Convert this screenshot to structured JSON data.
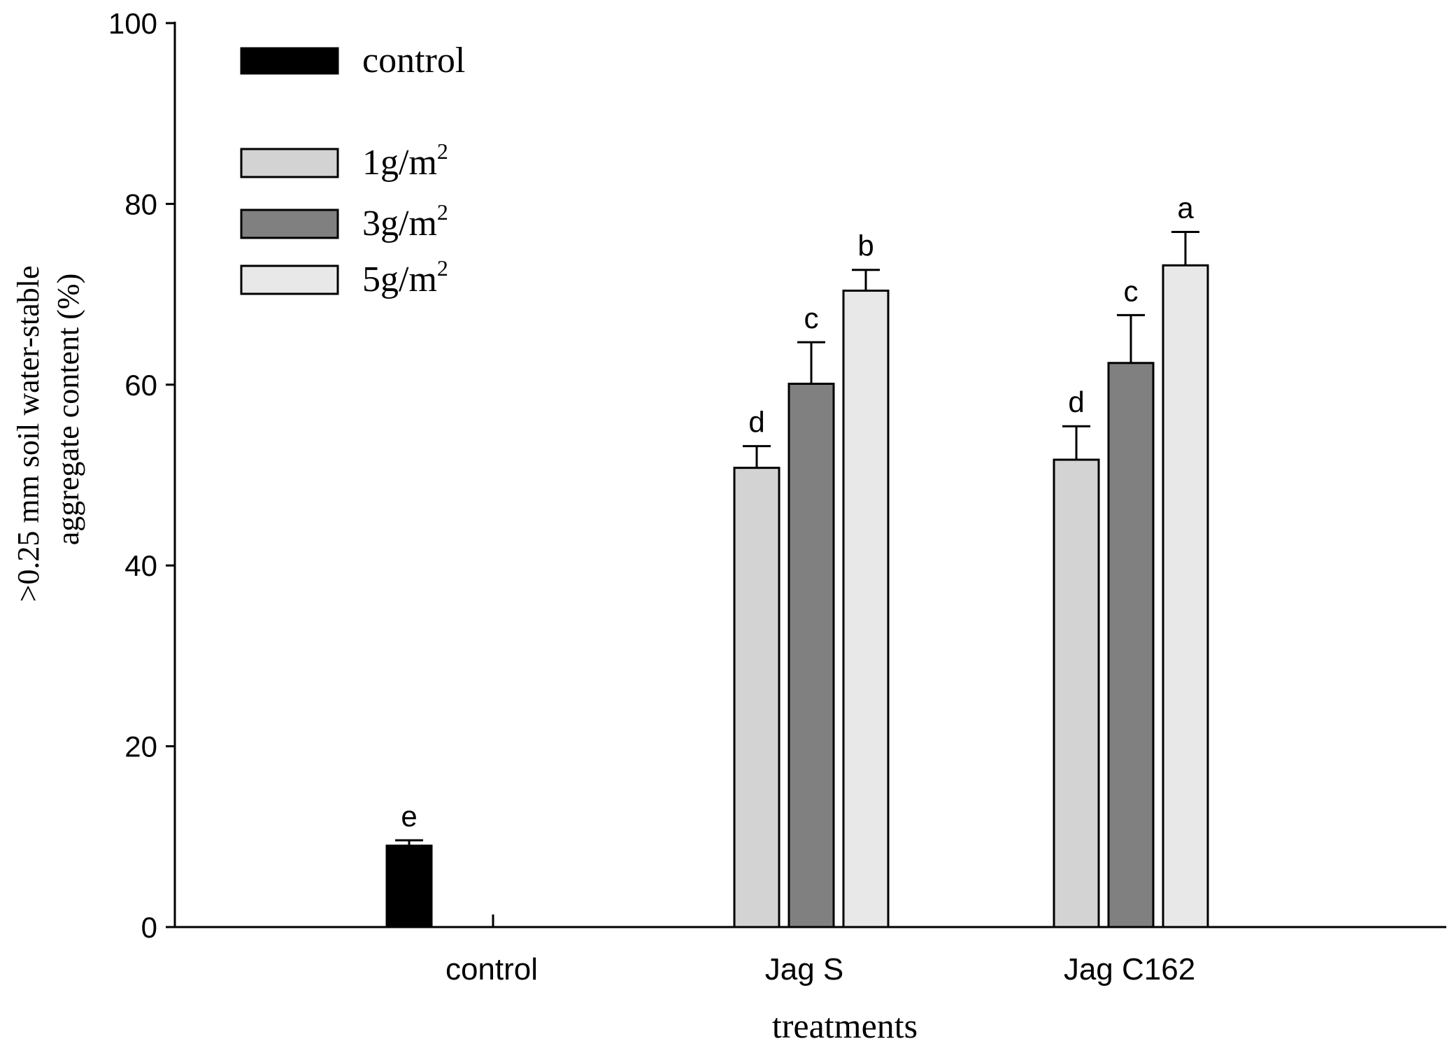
{
  "chart_data": {
    "type": "bar",
    "title": "",
    "xlabel": "treatments",
    "ylabel_line1": ">0.25 mm soil water-stable",
    "ylabel_line2": "aggregate content (%)",
    "ylim": [
      0,
      100
    ],
    "yticks": [
      0,
      20,
      40,
      60,
      80,
      100
    ],
    "categories": [
      "control",
      "Jag S",
      "Jag C162"
    ],
    "legend_position": "top-left",
    "series": [
      {
        "name": "control",
        "superscript": "",
        "color": "#000000",
        "values": [
          9.0,
          null,
          null
        ],
        "errors": [
          0.6,
          null,
          null
        ],
        "letters": [
          "e",
          null,
          null
        ]
      },
      {
        "name": "1g/m",
        "superscript": "2",
        "color": "#d3d3d3",
        "values": [
          null,
          50.8,
          51.7
        ],
        "errors": [
          null,
          2.4,
          3.7
        ],
        "letters": [
          null,
          "d",
          "d"
        ]
      },
      {
        "name": "3g/m",
        "superscript": "2",
        "color": "#808080",
        "values": [
          null,
          60.1,
          62.4
        ],
        "errors": [
          null,
          4.6,
          5.3
        ],
        "letters": [
          null,
          "c",
          "c"
        ]
      },
      {
        "name": "5g/m",
        "superscript": "2",
        "color": "#e8e8e8",
        "values": [
          null,
          70.4,
          73.2
        ],
        "errors": [
          null,
          2.3,
          3.7
        ],
        "letters": [
          null,
          "b",
          "a"
        ]
      }
    ]
  }
}
